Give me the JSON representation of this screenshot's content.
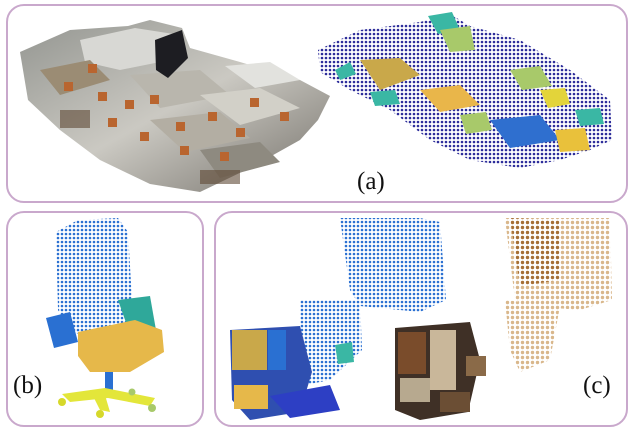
{
  "figure": {
    "panels": [
      {
        "id": "a",
        "caption": "(a)"
      },
      {
        "id": "b",
        "caption": "(b)"
      },
      {
        "id": "c",
        "caption": "(c)"
      }
    ]
  },
  "colors": {
    "frame": "#c9a8cc",
    "seg_navy": "#2c2c9a",
    "seg_yellow": "#e9c13b",
    "seg_teal": "#3ab7a4",
    "seg_lightgreen": "#a8c96a",
    "seg_blue": "#2f6fcf",
    "chair_blue": "#2a70d2",
    "chair_seat": "#e6b84a",
    "chair_teal": "#2fa89a",
    "chair_base": "#e3e63a"
  }
}
